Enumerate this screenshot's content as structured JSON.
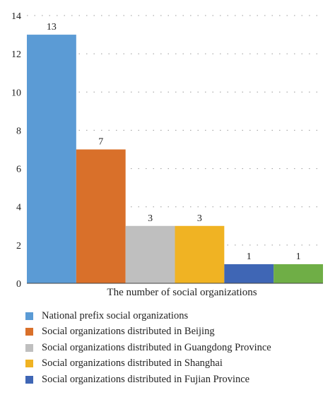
{
  "chart_data": {
    "type": "bar",
    "xlabel": "The number of social organizations",
    "ylim": [
      0,
      14
    ],
    "yticks": [
      0,
      2,
      4,
      6,
      8,
      10,
      12,
      14
    ],
    "grid": "horizontal dotted",
    "legend_placement": "bottom",
    "series": [
      {
        "name": "National prefix social organizations",
        "value": 13,
        "color": "#5b9bd5"
      },
      {
        "name": "Social organizations distributed in Beijing",
        "value": 7,
        "color": "#d9702a"
      },
      {
        "name": "Social organizations distributed in Guangdong Province",
        "value": 3,
        "color": "#bfbfbf"
      },
      {
        "name": "Social organizations distributed in Shanghai",
        "value": 3,
        "color": "#f0b323"
      },
      {
        "name": "Social organizations distributed in Fujian Province",
        "value": 1,
        "color": "#3f66b5"
      },
      {
        "value": 1,
        "color": "#6fae46"
      }
    ]
  }
}
